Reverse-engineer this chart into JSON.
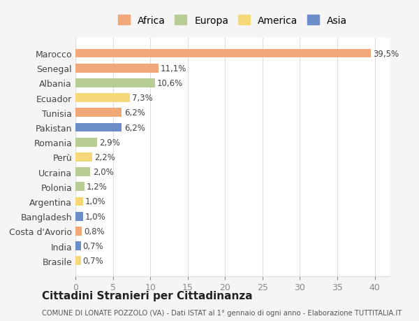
{
  "countries": [
    "Marocco",
    "Senegal",
    "Albania",
    "Ecuador",
    "Tunisia",
    "Pakistan",
    "Romania",
    "Perù",
    "Ucraina",
    "Polonia",
    "Argentina",
    "Bangladesh",
    "Costa d'Avorio",
    "India",
    "Brasile"
  ],
  "values": [
    39.5,
    11.1,
    10.6,
    7.3,
    6.2,
    6.2,
    2.9,
    2.2,
    2.0,
    1.2,
    1.0,
    1.0,
    0.8,
    0.7,
    0.7
  ],
  "labels": [
    "39,5%",
    "11,1%",
    "10,6%",
    "7,3%",
    "6,2%",
    "6,2%",
    "2,9%",
    "2,2%",
    "2,0%",
    "1,2%",
    "1,0%",
    "1,0%",
    "0,8%",
    "0,7%",
    "0,7%"
  ],
  "continents": [
    "Africa",
    "Africa",
    "Europa",
    "America",
    "Africa",
    "Asia",
    "Europa",
    "America",
    "Europa",
    "Europa",
    "America",
    "Asia",
    "Africa",
    "Asia",
    "America"
  ],
  "colors": {
    "Africa": "#F0A878",
    "Europa": "#B8CC96",
    "America": "#F5D878",
    "Asia": "#6B8EC8"
  },
  "legend_order": [
    "Africa",
    "Europa",
    "America",
    "Asia"
  ],
  "title": "Cittadini Stranieri per Cittadinanza",
  "subtitle": "COMUNE DI LONATE POZZOLO (VA) - Dati ISTAT al 1° gennaio di ogni anno - Elaborazione TUTTITALIA.IT",
  "xlim": [
    0,
    42
  ],
  "xticks": [
    0,
    5,
    10,
    15,
    20,
    25,
    30,
    35,
    40
  ],
  "background_color": "#f5f5f5",
  "plot_background": "#ffffff",
  "grid_color": "#dddddd"
}
